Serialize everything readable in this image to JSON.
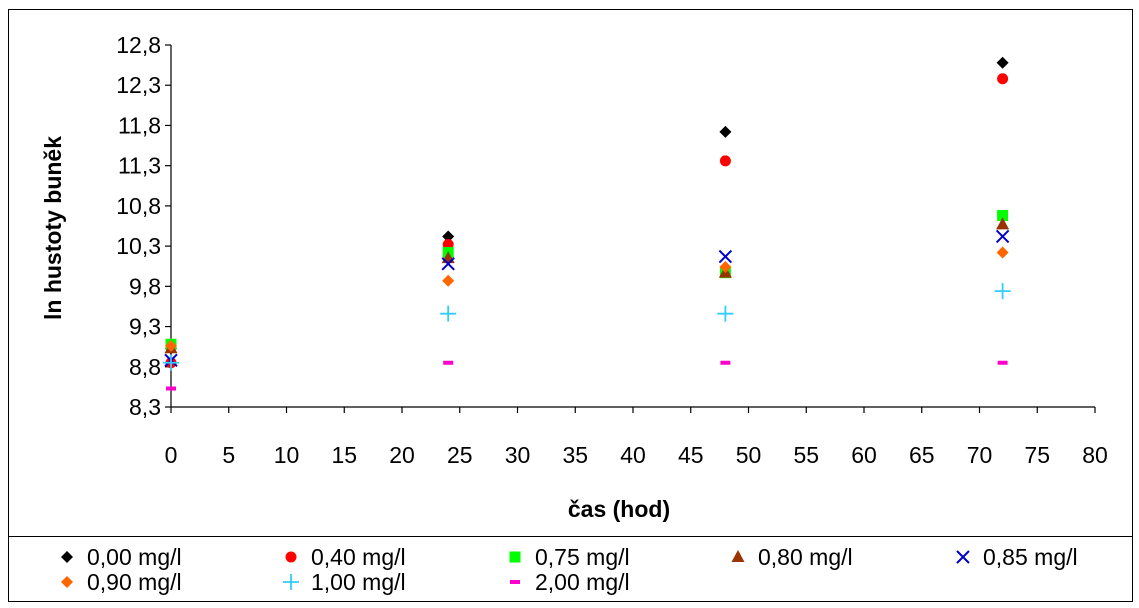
{
  "chart_data": {
    "type": "scatter",
    "title": "",
    "xlabel": "čas (hod)",
    "ylabel": "ln hustoty buněk",
    "xlim": [
      0,
      80
    ],
    "ylim": [
      8.3,
      12.8
    ],
    "xticks": [
      "0",
      "5",
      "10",
      "15",
      "20",
      "25",
      "30",
      "35",
      "40",
      "45",
      "50",
      "55",
      "60",
      "65",
      "70",
      "75",
      "80"
    ],
    "yticks": [
      "8,3",
      "8,8",
      "9,3",
      "9,8",
      "10,3",
      "10,8",
      "11,3",
      "11,8",
      "12,3",
      "12,8"
    ],
    "grid": false,
    "legend_position": "bottom",
    "series": [
      {
        "name": "0,00 mg/l",
        "marker": "diamond",
        "color": "#000000",
        "x": [
          0,
          24,
          48,
          72
        ],
        "y": [
          9.03,
          10.42,
          11.72,
          12.58
        ]
      },
      {
        "name": "0,40 mg/l",
        "marker": "circle",
        "color": "#ff0000",
        "x": [
          0,
          24,
          48,
          72
        ],
        "y": [
          8.85,
          10.32,
          11.36,
          12.38
        ]
      },
      {
        "name": "0,75 mg/l",
        "marker": "square",
        "color": "#00ff00",
        "x": [
          0,
          24,
          48,
          72
        ],
        "y": [
          9.08,
          10.22,
          9.97,
          10.68
        ]
      },
      {
        "name": "0,80 mg/l",
        "marker": "triangle",
        "color": "#993300",
        "x": [
          0,
          24,
          48,
          72
        ],
        "y": [
          9.03,
          10.15,
          9.97,
          10.57
        ]
      },
      {
        "name": "0,85 mg/l",
        "marker": "x",
        "color": "#0000cc",
        "x": [
          0,
          24,
          48,
          72
        ],
        "y": [
          8.88,
          10.08,
          10.17,
          10.42
        ]
      },
      {
        "name": "0,90 mg/l",
        "marker": "diamond",
        "color": "#ff6600",
        "x": [
          0,
          24,
          48,
          72
        ],
        "y": [
          9.06,
          9.87,
          10.04,
          10.22
        ]
      },
      {
        "name": "1,00 mg/l",
        "marker": "plus",
        "color": "#33ccff",
        "x": [
          0,
          24,
          48,
          72
        ],
        "y": [
          8.85,
          9.46,
          9.46,
          9.74
        ]
      },
      {
        "name": "2,00 mg/l",
        "marker": "dash",
        "color": "#ff00cc",
        "x": [
          0,
          24,
          48,
          72
        ],
        "y": [
          8.53,
          8.85,
          8.85,
          8.85
        ]
      }
    ]
  }
}
